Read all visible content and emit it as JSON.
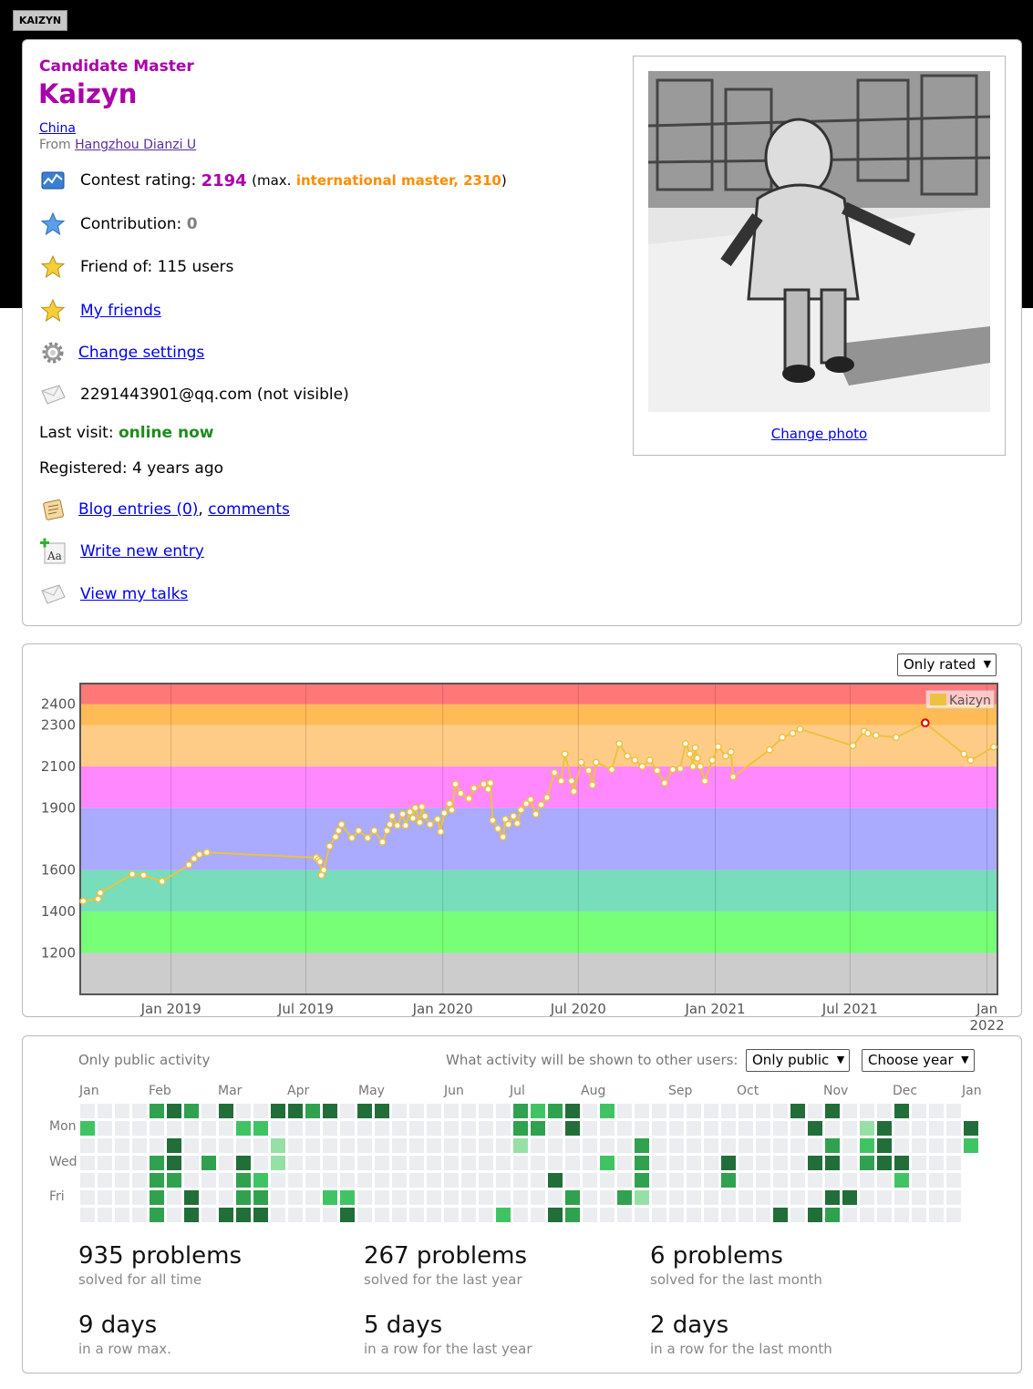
{
  "header": {
    "handle_tab": "KAIZYN"
  },
  "profile": {
    "rank": "Candidate Master",
    "handle": "Kaizyn",
    "country": "China",
    "from_prefix": "From",
    "organization": "Hangzhou Dianzi U",
    "rating_label": "Contest rating:",
    "rating_value": "2194",
    "max_prefix": "(max.",
    "max_rank_value": "international master, 2310",
    "max_suffix": ")",
    "contribution_label": "Contribution:",
    "contribution_value": "0",
    "friend_of": "Friend of: 115 users",
    "my_friends": "My friends",
    "change_settings": "Change settings",
    "email": "2291443901@qq.com (not visible)",
    "last_visit_label": "Last visit:",
    "last_visit_value": "online now",
    "registered": "Registered: 4 years ago",
    "blog_entries": "Blog entries (0)",
    "comma": ",",
    "comments": "comments",
    "write_entry": "Write new entry",
    "view_talks": "View my talks",
    "change_photo": "Change photo"
  },
  "colors": {
    "handle": "#aa00aa",
    "max_rank": "#ff8c00",
    "online": "#1f8b1f",
    "line": "#edc240"
  },
  "graph": {
    "filter": "Only rated",
    "legend": "Kaizyn"
  },
  "chart_data": {
    "type": "line",
    "series": [
      {
        "name": "Kaizyn",
        "points": [
          [
            "2018-09-05",
            1450
          ],
          [
            "2018-09-25",
            1460
          ],
          [
            "2018-09-28",
            1490
          ],
          [
            "2018-11-10",
            1580
          ],
          [
            "2018-11-25",
            1575
          ],
          [
            "2018-12-20",
            1545
          ],
          [
            "2019-01-25",
            1625
          ],
          [
            "2019-02-01",
            1655
          ],
          [
            "2019-02-08",
            1675
          ],
          [
            "2019-02-18",
            1685
          ],
          [
            "2019-07-15",
            1660
          ],
          [
            "2019-07-18",
            1650
          ],
          [
            "2019-07-20",
            1640
          ],
          [
            "2019-07-22",
            1575
          ],
          [
            "2019-07-25",
            1600
          ],
          [
            "2019-08-02",
            1715
          ],
          [
            "2019-08-10",
            1760
          ],
          [
            "2019-08-14",
            1790
          ],
          [
            "2019-08-18",
            1820
          ],
          [
            "2019-09-01",
            1755
          ],
          [
            "2019-09-10",
            1790
          ],
          [
            "2019-09-22",
            1755
          ],
          [
            "2019-10-01",
            1790
          ],
          [
            "2019-10-12",
            1735
          ],
          [
            "2019-10-18",
            1790
          ],
          [
            "2019-10-22",
            1820
          ],
          [
            "2019-10-25",
            1860
          ],
          [
            "2019-11-01",
            1815
          ],
          [
            "2019-11-08",
            1870
          ],
          [
            "2019-11-12",
            1815
          ],
          [
            "2019-11-18",
            1880
          ],
          [
            "2019-11-22",
            1850
          ],
          [
            "2019-11-25",
            1900
          ],
          [
            "2019-12-01",
            1830
          ],
          [
            "2019-12-04",
            1905
          ],
          [
            "2019-12-08",
            1860
          ],
          [
            "2019-12-15",
            1820
          ],
          [
            "2019-12-25",
            1845
          ],
          [
            "2019-12-29",
            1785
          ],
          [
            "2020-01-03",
            1875
          ],
          [
            "2020-01-10",
            1920
          ],
          [
            "2020-01-13",
            1890
          ],
          [
            "2020-01-18",
            2015
          ],
          [
            "2020-01-25",
            1970
          ],
          [
            "2020-02-05",
            1945
          ],
          [
            "2020-02-12",
            1995
          ],
          [
            "2020-02-25",
            2015
          ],
          [
            "2020-03-02",
            1990
          ],
          [
            "2020-03-05",
            2020
          ],
          [
            "2020-03-08",
            1840
          ],
          [
            "2020-03-15",
            1800
          ],
          [
            "2020-03-22",
            1760
          ],
          [
            "2020-03-25",
            1845
          ],
          [
            "2020-03-29",
            1820
          ],
          [
            "2020-04-05",
            1860
          ],
          [
            "2020-04-10",
            1825
          ],
          [
            "2020-04-15",
            1890
          ],
          [
            "2020-04-22",
            1920
          ],
          [
            "2020-04-28",
            1940
          ],
          [
            "2020-05-05",
            1870
          ],
          [
            "2020-05-12",
            1915
          ],
          [
            "2020-05-20",
            1950
          ],
          [
            "2020-05-30",
            2070
          ],
          [
            "2020-06-08",
            2030
          ],
          [
            "2020-06-13",
            2160
          ],
          [
            "2020-06-22",
            2030
          ],
          [
            "2020-06-25",
            1980
          ],
          [
            "2020-07-05",
            2120
          ],
          [
            "2020-07-15",
            2080
          ],
          [
            "2020-07-20",
            2010
          ],
          [
            "2020-07-25",
            2120
          ],
          [
            "2020-08-15",
            2085
          ],
          [
            "2020-08-25",
            2210
          ],
          [
            "2020-09-05",
            2150
          ],
          [
            "2020-09-15",
            2130
          ],
          [
            "2020-09-25",
            2100
          ],
          [
            "2020-10-05",
            2130
          ],
          [
            "2020-10-15",
            2080
          ],
          [
            "2020-10-25",
            2020
          ],
          [
            "2020-11-05",
            2085
          ],
          [
            "2020-11-15",
            2090
          ],
          [
            "2020-11-22",
            2210
          ],
          [
            "2020-11-28",
            2160
          ],
          [
            "2020-12-02",
            2100
          ],
          [
            "2020-12-05",
            2190
          ],
          [
            "2020-12-08",
            2140
          ],
          [
            "2020-12-12",
            2100
          ],
          [
            "2020-12-18",
            2030
          ],
          [
            "2020-12-28",
            2130
          ],
          [
            "2021-01-05",
            2195
          ],
          [
            "2021-01-15",
            2150
          ],
          [
            "2021-01-22",
            2170
          ],
          [
            "2021-01-25",
            2050
          ],
          [
            "2021-03-15",
            2180
          ],
          [
            "2021-04-01",
            2240
          ],
          [
            "2021-04-15",
            2260
          ],
          [
            "2021-04-25",
            2280
          ],
          [
            "2021-07-05",
            2200
          ],
          [
            "2021-07-20",
            2270
          ],
          [
            "2021-07-25",
            2260
          ],
          [
            "2021-08-05",
            2250
          ],
          [
            "2021-09-01",
            2240
          ],
          [
            "2021-10-10",
            2310
          ],
          [
            "2021-12-01",
            2160
          ],
          [
            "2021-12-10",
            2130
          ],
          [
            "2022-01-10",
            2194
          ]
        ]
      }
    ],
    "x_ticks": [
      "Jan 2019",
      "Jul 2019",
      "Jan 2020",
      "Jul 2020",
      "Jan 2021",
      "Jul 2021",
      "Jan\n2022"
    ],
    "y_ticks": [
      1200,
      1400,
      1600,
      1900,
      2100,
      2300,
      2400
    ],
    "ylim": [
      1000,
      2500
    ],
    "xlim": [
      "2018-09-01",
      "2022-01-15"
    ],
    "bands": [
      {
        "from": 1000,
        "to": 1200,
        "color": "#cccccc"
      },
      {
        "from": 1200,
        "to": 1400,
        "color": "#77ff77"
      },
      {
        "from": 1400,
        "to": 1600,
        "color": "#77ddbb"
      },
      {
        "from": 1600,
        "to": 1900,
        "color": "#aaaaff"
      },
      {
        "from": 1900,
        "to": 2100,
        "color": "#ff88ff"
      },
      {
        "from": 2100,
        "to": 2300,
        "color": "#ffcc88"
      },
      {
        "from": 2300,
        "to": 2400,
        "color": "#ffbb55"
      },
      {
        "from": 2400,
        "to": 2500,
        "color": "#ff7777"
      }
    ],
    "max_point": [
      "2021-10-10",
      2310
    ],
    "legend_position": "top-right",
    "grid": true
  },
  "activity": {
    "public_label": "Only public activity",
    "shown_label": "What activity will be shown to other users:",
    "visibility_select": "Only public",
    "year_select": "Choose year",
    "months": [
      "Jan",
      "Feb",
      "Mar",
      "Apr",
      "May",
      "Jun",
      "Jul",
      "Aug",
      "Sep",
      "Oct",
      "Nov",
      "Dec",
      "Jan"
    ],
    "days": [
      "Mon",
      "Wed",
      "Fri"
    ],
    "heatmap": {
      "levels_colors": [
        "#ebedf0",
        "#97e0a5",
        "#40c463",
        "#30a14e",
        "#216e39"
      ],
      "cells": [
        [
          0,
          1,
          2
        ],
        [
          4,
          0,
          3
        ],
        [
          4,
          3,
          3
        ],
        [
          4,
          4,
          3
        ],
        [
          4,
          5,
          3
        ],
        [
          4,
          6,
          3
        ],
        [
          5,
          0,
          4
        ],
        [
          5,
          2,
          4
        ],
        [
          5,
          3,
          4
        ],
        [
          5,
          4,
          3
        ],
        [
          6,
          0,
          3
        ],
        [
          6,
          5,
          4
        ],
        [
          6,
          6,
          4
        ],
        [
          7,
          3,
          3
        ],
        [
          8,
          0,
          4
        ],
        [
          8,
          6,
          4
        ],
        [
          9,
          1,
          2
        ],
        [
          9,
          3,
          4
        ],
        [
          9,
          4,
          3
        ],
        [
          9,
          5,
          3
        ],
        [
          9,
          6,
          4
        ],
        [
          10,
          4,
          2
        ],
        [
          10,
          5,
          3
        ],
        [
          10,
          6,
          3
        ],
        [
          10,
          1,
          0
        ],
        [
          10,
          3,
          0
        ],
        [
          10,
          2,
          0
        ],
        [
          11,
          2,
          1
        ],
        [
          11,
          3,
          1
        ],
        [
          10,
          0,
          0
        ],
        [
          11,
          0,
          0
        ],
        [
          10,
          1,
          2
        ],
        [
          11,
          2,
          1
        ],
        [
          10,
          5,
          3
        ],
        [
          10,
          6,
          4
        ],
        [
          10,
          4,
          2
        ],
        [
          10,
          0,
          0
        ],
        [
          11,
          0,
          4
        ],
        [
          12,
          0,
          4
        ],
        [
          13,
          0,
          3
        ],
        [
          14,
          0,
          4
        ],
        [
          15,
          6,
          4
        ],
        [
          14,
          5,
          2
        ],
        [
          15,
          5,
          2
        ],
        [
          16,
          0,
          4
        ],
        [
          17,
          0,
          4
        ],
        [
          24,
          6,
          2
        ],
        [
          25,
          0,
          3
        ],
        [
          25,
          1,
          3
        ],
        [
          25,
          2,
          1
        ],
        [
          26,
          0,
          2
        ],
        [
          26,
          1,
          3
        ],
        [
          27,
          0,
          3
        ],
        [
          27,
          4,
          4
        ],
        [
          27,
          6,
          4
        ],
        [
          28,
          0,
          4
        ],
        [
          28,
          1,
          4
        ],
        [
          28,
          5,
          3
        ],
        [
          28,
          6,
          3
        ],
        [
          30,
          0,
          2
        ],
        [
          30,
          3,
          2
        ],
        [
          31,
          5,
          3
        ],
        [
          32,
          2,
          3
        ],
        [
          32,
          3,
          3
        ],
        [
          32,
          4,
          3
        ],
        [
          32,
          5,
          1
        ],
        [
          37,
          3,
          4
        ],
        [
          37,
          4,
          3
        ],
        [
          40,
          6,
          4
        ],
        [
          41,
          0,
          4
        ],
        [
          42,
          1,
          4
        ],
        [
          42,
          3,
          4
        ],
        [
          42,
          6,
          4
        ],
        [
          43,
          0,
          4
        ],
        [
          43,
          2,
          3
        ],
        [
          43,
          3,
          4
        ],
        [
          43,
          5,
          4
        ],
        [
          43,
          6,
          3
        ],
        [
          44,
          5,
          4
        ],
        [
          45,
          1,
          1
        ],
        [
          45,
          2,
          2
        ],
        [
          45,
          3,
          3
        ],
        [
          46,
          1,
          4
        ],
        [
          46,
          2,
          4
        ],
        [
          46,
          3,
          4
        ],
        [
          47,
          0,
          4
        ],
        [
          47,
          3,
          4
        ],
        [
          47,
          4,
          2
        ],
        [
          51,
          1,
          4
        ],
        [
          51,
          2,
          2
        ]
      ]
    },
    "stats": [
      {
        "value": "935 problems",
        "desc": "solved for all time"
      },
      {
        "value": "267 problems",
        "desc": "solved for the last year"
      },
      {
        "value": "6 problems",
        "desc": "solved for the last month"
      },
      {
        "value": "9 days",
        "desc": "in a row max."
      },
      {
        "value": "5 days",
        "desc": "in a row for the last year"
      },
      {
        "value": "2 days",
        "desc": "in a row for the last month"
      }
    ]
  }
}
